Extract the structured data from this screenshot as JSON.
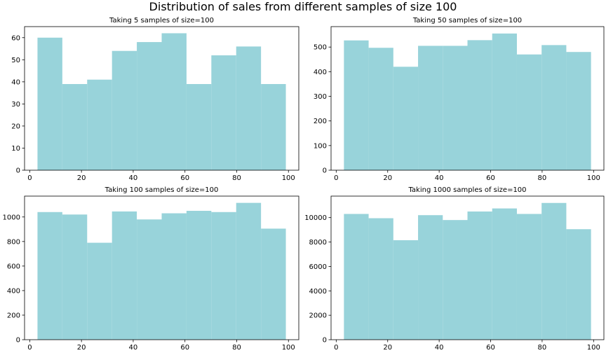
{
  "figure": {
    "suptitle": "Distribution of sales from different samples of size 100",
    "bar_color": "#98d3da"
  },
  "chart_data": [
    {
      "type": "bar",
      "title": "Taking 5 samples of size=100",
      "bin_edges": [
        3,
        12.6,
        22.2,
        31.8,
        41.4,
        51,
        60.6,
        70.2,
        79.8,
        89.4,
        99
      ],
      "values": [
        60,
        39,
        41,
        54,
        58,
        62,
        39,
        52,
        56,
        39
      ],
      "xlim": [
        -2,
        104
      ],
      "ylim": [
        0,
        65
      ],
      "xticks": [
        0,
        20,
        40,
        60,
        80,
        100
      ],
      "yticks": [
        0,
        10,
        20,
        30,
        40,
        50,
        60
      ],
      "grid": false
    },
    {
      "type": "bar",
      "title": "Taking 50 samples of size=100",
      "bin_edges": [
        3,
        12.6,
        22.2,
        31.8,
        41.4,
        51,
        60.6,
        70.2,
        79.8,
        89.4,
        99
      ],
      "values": [
        527,
        497,
        420,
        505,
        505,
        528,
        555,
        470,
        508,
        480
      ],
      "xlim": [
        -2,
        104
      ],
      "ylim": [
        0,
        583
      ],
      "xticks": [
        0,
        20,
        40,
        60,
        80,
        100
      ],
      "yticks": [
        0,
        100,
        200,
        300,
        400,
        500
      ],
      "grid": false
    },
    {
      "type": "bar",
      "title": "Taking 100 samples of size=100",
      "bin_edges": [
        3,
        12.6,
        22.2,
        31.8,
        41.4,
        51,
        60.6,
        70.2,
        79.8,
        89.4,
        99
      ],
      "values": [
        1040,
        1020,
        790,
        1045,
        980,
        1030,
        1050,
        1040,
        1115,
        905
      ],
      "xlim": [
        -2,
        104
      ],
      "ylim": [
        0,
        1170
      ],
      "xticks": [
        0,
        20,
        40,
        60,
        80,
        100
      ],
      "yticks": [
        0,
        200,
        400,
        600,
        800,
        1000
      ],
      "grid": false
    },
    {
      "type": "bar",
      "title": "Taking 1000 samples of size=100",
      "bin_edges": [
        3,
        12.6,
        22.2,
        31.8,
        41.4,
        51,
        60.6,
        70.2,
        79.8,
        89.4,
        99
      ],
      "values": [
        10300,
        9950,
        8150,
        10200,
        9800,
        10500,
        10750,
        10300,
        11200,
        9050
      ],
      "xlim": [
        -2,
        104
      ],
      "ylim": [
        0,
        11760
      ],
      "xticks": [
        0,
        20,
        40,
        60,
        80,
        100
      ],
      "yticks": [
        0,
        2000,
        4000,
        6000,
        8000,
        10000
      ],
      "grid": false
    }
  ]
}
